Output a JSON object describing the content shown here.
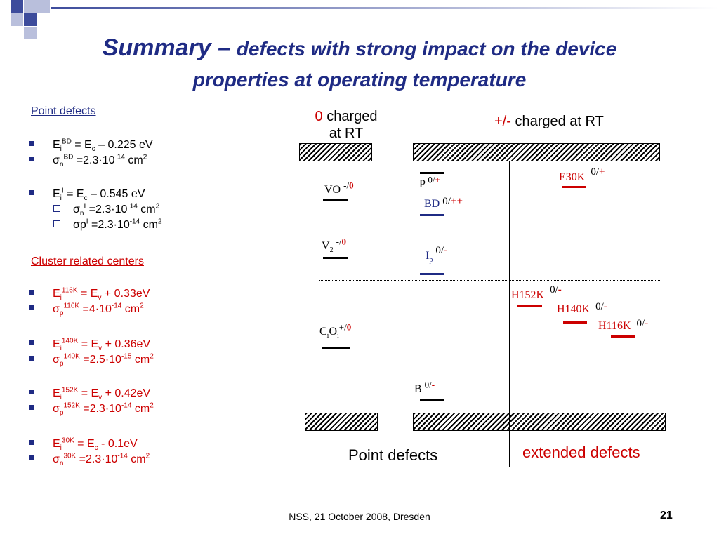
{
  "title": {
    "main": "Summary –",
    "rest1": "defects with strong impact on the device",
    "line2": "properties at operating temperature"
  },
  "left": {
    "point_header": "Point defects",
    "cluster_header": "Cluster related centers",
    "items": [
      {
        "pre": "E",
        "sub": "i",
        "sup": "BD",
        "post": " = E",
        "sub2": "c",
        "post2": " – 0.225 eV"
      },
      {
        "sym": "σ",
        "sub": "n",
        "sup": "BD",
        "post": " =2.3·10",
        "sup2": "-14",
        "post2": " cm",
        "sup3": "2"
      },
      {
        "pre": "E",
        "sub": "i",
        "sup": "I",
        "post": " = E",
        "sub2": "c",
        "post2": " – 0.545 eV"
      },
      {
        "sym": "σ",
        "sub": "n",
        "sup": "I",
        "post": " =2.3·10",
        "sup2": "-14",
        "post2": " cm",
        "sup3": "2"
      },
      {
        "sym": "σ",
        "sub": "",
        "pre2": "p",
        "sup": "I",
        "post": " =2.3·10",
        "sup2": "-14",
        "post2": " cm",
        "sup3": "2"
      },
      {
        "pre": "E",
        "sub": "i",
        "sup": "116K",
        "post": " = E",
        "sub2": "v",
        "post2": " + 0.33eV"
      },
      {
        "sym": "σ",
        "sub": "p",
        "sup": "116K",
        "post": " =4·10",
        "sup2": "-14",
        "post2": " cm",
        "sup3": "2"
      },
      {
        "pre": "E",
        "sub": "i",
        "sup": "140K",
        "post": " = E",
        "sub2": "v",
        "post2": " + 0.36eV"
      },
      {
        "sym": "σ",
        "sub": "p",
        "sup": "140K",
        "post": " =2.5·10",
        "sup2": "-15",
        "post2": " cm",
        "sup3": "2"
      },
      {
        "pre": "E",
        "sub": "i",
        "sup": "152K",
        "post": " = E",
        "sub2": "v",
        "post2": " + 0.42eV"
      },
      {
        "sym": "σ",
        "sub": "p",
        "sup": "152K",
        "post": " =2.3·10",
        "sup2": "-14",
        "post2": " cm",
        "sup3": "2"
      },
      {
        "pre": "E",
        "sub": "i",
        "sup": "30K",
        "post": " = E",
        "sub2": "c",
        "post2": " - 0.1eV"
      },
      {
        "sym": "σ",
        "sub": "n",
        "sup": "30K",
        "post": " =2.3·10",
        "sup2": "-14",
        "post2": " cm",
        "sup3": "2"
      }
    ]
  },
  "diagram": {
    "charged_zero_a": "0",
    "charged_zero_b": " charged",
    "charged_zero_c": "at RT",
    "charged_pm_a": "+/-",
    "charged_pm_b": " charged at RT",
    "point_defects_label": "Point defects",
    "extended_defects_label": "extended defects",
    "defects": {
      "vo": "VO",
      "vo_state_a": "-/",
      "vo_state_b": "0",
      "v2": "V",
      "v2_sub": "2",
      "v2_state_a": "-/",
      "v2_state_b": "0",
      "cioi": "C",
      "cioi_sub1": "i",
      "cioi_mid": "O",
      "cioi_sub2": "i",
      "cioi_state_a": "+/",
      "cioi_state_b": "0",
      "p": "P",
      "p_state_a": "0/",
      "p_state_b": "+",
      "bd": "BD",
      "bd_state_a": "0/",
      "bd_state_b": "++",
      "ip": "I",
      "ip_sub": "p",
      "ip_state_a": "0/",
      "ip_state_b": "-",
      "b": "B",
      "b_state_a": "0/",
      "b_state_b": "-",
      "e30k": "E30K",
      "e30k_state_a": "0/",
      "e30k_state_b": "+",
      "h152k": "H152K",
      "h152k_state_a": "0/",
      "h152k_state_b": "-",
      "h140k": "H140K",
      "h140k_state_a": "0/",
      "h140k_state_b": "-",
      "h116k": "H116K",
      "h116k_state_a": "0/",
      "h116k_state_b": "-"
    }
  },
  "footer": {
    "text": "NSS, 21 October 2008, Dresden",
    "page": "21"
  },
  "colors": {
    "title": "#1f2b84",
    "accent_red": "#cc0000",
    "deco_dark": "#3d4c9c",
    "deco_light": "#b9bfdc"
  }
}
